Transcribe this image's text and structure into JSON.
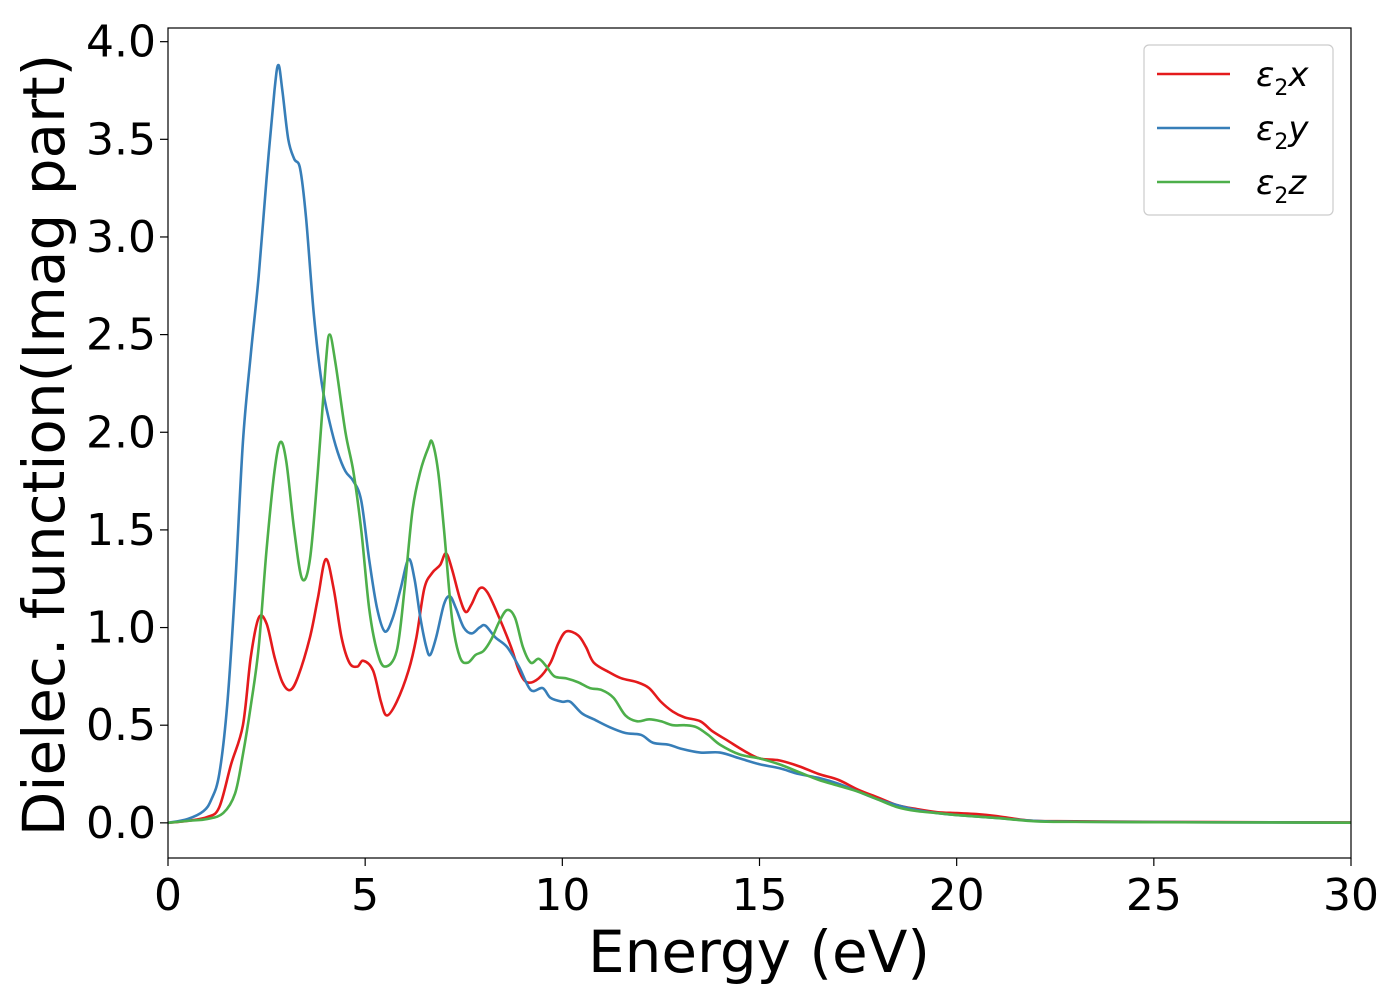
{
  "chart_data": {
    "type": "line",
    "xlabel": "Energy (eV)",
    "ylabel": "Dielec. function(Imag part)",
    "xlim": [
      0,
      30
    ],
    "ylim": [
      -0.18,
      4.07
    ],
    "xticks": [
      0,
      5,
      10,
      15,
      20,
      25,
      30
    ],
    "xtick_labels": [
      "0",
      "5",
      "10",
      "15",
      "20",
      "25",
      "30"
    ],
    "yticks": [
      0.0,
      0.5,
      1.0,
      1.5,
      2.0,
      2.5,
      3.0,
      3.5,
      4.0
    ],
    "ytick_labels": [
      "0.0",
      "0.5",
      "1.0",
      "1.5",
      "2.0",
      "2.5",
      "3.0",
      "3.5",
      "4.0"
    ],
    "grid": false,
    "legend_position": "top-right",
    "series": [
      {
        "name": "ε2x",
        "legend": {
          "symbol": "ε",
          "sub": "2",
          "comp": "x"
        },
        "color": "#e41a1c",
        "points": [
          [
            0,
            0
          ],
          [
            0.5,
            0.01
          ],
          [
            1.0,
            0.03
          ],
          [
            1.3,
            0.08
          ],
          [
            1.6,
            0.3
          ],
          [
            1.9,
            0.5
          ],
          [
            2.1,
            0.85
          ],
          [
            2.3,
            1.05
          ],
          [
            2.5,
            1.02
          ],
          [
            2.7,
            0.85
          ],
          [
            2.9,
            0.72
          ],
          [
            3.1,
            0.68
          ],
          [
            3.3,
            0.75
          ],
          [
            3.6,
            0.95
          ],
          [
            3.8,
            1.15
          ],
          [
            4.0,
            1.35
          ],
          [
            4.2,
            1.2
          ],
          [
            4.4,
            0.95
          ],
          [
            4.6,
            0.82
          ],
          [
            4.8,
            0.8
          ],
          [
            4.95,
            0.83
          ],
          [
            5.2,
            0.78
          ],
          [
            5.4,
            0.62
          ],
          [
            5.55,
            0.55
          ],
          [
            5.8,
            0.62
          ],
          [
            6.1,
            0.78
          ],
          [
            6.3,
            0.95
          ],
          [
            6.5,
            1.2
          ],
          [
            6.7,
            1.28
          ],
          [
            6.9,
            1.32
          ],
          [
            7.05,
            1.38
          ],
          [
            7.2,
            1.3
          ],
          [
            7.4,
            1.15
          ],
          [
            7.55,
            1.08
          ],
          [
            7.7,
            1.12
          ],
          [
            7.9,
            1.2
          ],
          [
            8.1,
            1.18
          ],
          [
            8.4,
            1.05
          ],
          [
            8.7,
            0.9
          ],
          [
            8.9,
            0.78
          ],
          [
            9.1,
            0.72
          ],
          [
            9.4,
            0.74
          ],
          [
            9.7,
            0.82
          ],
          [
            9.9,
            0.92
          ],
          [
            10.1,
            0.98
          ],
          [
            10.4,
            0.96
          ],
          [
            10.6,
            0.9
          ],
          [
            10.8,
            0.82
          ],
          [
            11.2,
            0.77
          ],
          [
            11.5,
            0.74
          ],
          [
            11.9,
            0.72
          ],
          [
            12.2,
            0.69
          ],
          [
            12.5,
            0.62
          ],
          [
            12.8,
            0.57
          ],
          [
            13.1,
            0.54
          ],
          [
            13.5,
            0.52
          ],
          [
            13.8,
            0.47
          ],
          [
            14.2,
            0.42
          ],
          [
            14.6,
            0.37
          ],
          [
            15.0,
            0.33
          ],
          [
            15.5,
            0.32
          ],
          [
            16.0,
            0.29
          ],
          [
            16.5,
            0.25
          ],
          [
            17.0,
            0.22
          ],
          [
            17.5,
            0.17
          ],
          [
            18.0,
            0.13
          ],
          [
            18.5,
            0.09
          ],
          [
            19.0,
            0.07
          ],
          [
            19.5,
            0.055
          ],
          [
            20.0,
            0.05
          ],
          [
            20.5,
            0.045
          ],
          [
            21.0,
            0.035
          ],
          [
            21.5,
            0.02
          ],
          [
            22.0,
            0.01
          ],
          [
            23,
            0.008
          ],
          [
            25,
            0.005
          ],
          [
            28,
            0.003
          ],
          [
            30,
            0.002
          ]
        ]
      },
      {
        "name": "ε2y",
        "legend": {
          "symbol": "ε",
          "sub": "2",
          "comp": "y"
        },
        "color": "#377eb8",
        "points": [
          [
            0,
            0
          ],
          [
            0.5,
            0.02
          ],
          [
            0.9,
            0.06
          ],
          [
            1.1,
            0.12
          ],
          [
            1.3,
            0.25
          ],
          [
            1.5,
            0.6
          ],
          [
            1.7,
            1.2
          ],
          [
            1.9,
            1.95
          ],
          [
            2.1,
            2.4
          ],
          [
            2.3,
            2.8
          ],
          [
            2.5,
            3.3
          ],
          [
            2.7,
            3.75
          ],
          [
            2.8,
            3.88
          ],
          [
            2.9,
            3.75
          ],
          [
            3.05,
            3.5
          ],
          [
            3.2,
            3.4
          ],
          [
            3.35,
            3.35
          ],
          [
            3.5,
            3.1
          ],
          [
            3.7,
            2.6
          ],
          [
            3.9,
            2.25
          ],
          [
            4.1,
            2.05
          ],
          [
            4.3,
            1.9
          ],
          [
            4.5,
            1.8
          ],
          [
            4.7,
            1.75
          ],
          [
            4.9,
            1.65
          ],
          [
            5.1,
            1.35
          ],
          [
            5.3,
            1.1
          ],
          [
            5.5,
            0.98
          ],
          [
            5.7,
            1.05
          ],
          [
            5.9,
            1.2
          ],
          [
            6.1,
            1.35
          ],
          [
            6.25,
            1.25
          ],
          [
            6.4,
            1.05
          ],
          [
            6.55,
            0.9
          ],
          [
            6.65,
            0.86
          ],
          [
            6.8,
            0.95
          ],
          [
            7.0,
            1.12
          ],
          [
            7.15,
            1.16
          ],
          [
            7.3,
            1.1
          ],
          [
            7.5,
            1.0
          ],
          [
            7.7,
            0.97
          ],
          [
            7.9,
            1.0
          ],
          [
            8.05,
            1.01
          ],
          [
            8.3,
            0.95
          ],
          [
            8.6,
            0.9
          ],
          [
            8.9,
            0.8
          ],
          [
            9.2,
            0.68
          ],
          [
            9.5,
            0.69
          ],
          [
            9.7,
            0.64
          ],
          [
            10.0,
            0.62
          ],
          [
            10.2,
            0.62
          ],
          [
            10.5,
            0.56
          ],
          [
            10.8,
            0.53
          ],
          [
            11.2,
            0.49
          ],
          [
            11.6,
            0.46
          ],
          [
            12.0,
            0.45
          ],
          [
            12.3,
            0.41
          ],
          [
            12.7,
            0.4
          ],
          [
            13.0,
            0.38
          ],
          [
            13.5,
            0.36
          ],
          [
            14.0,
            0.36
          ],
          [
            14.5,
            0.33
          ],
          [
            15.0,
            0.3
          ],
          [
            15.5,
            0.28
          ],
          [
            16.0,
            0.25
          ],
          [
            16.5,
            0.23
          ],
          [
            17.0,
            0.2
          ],
          [
            17.5,
            0.16
          ],
          [
            18.0,
            0.12
          ],
          [
            18.5,
            0.09
          ],
          [
            19.0,
            0.065
          ],
          [
            19.5,
            0.05
          ],
          [
            20.0,
            0.04
          ],
          [
            21.0,
            0.025
          ],
          [
            22.0,
            0.01
          ],
          [
            23,
            0.006
          ],
          [
            25,
            0.004
          ],
          [
            28,
            0.002
          ],
          [
            30,
            0.001
          ]
        ]
      },
      {
        "name": "ε2z",
        "legend": {
          "symbol": "ε",
          "sub": "2",
          "comp": "z"
        },
        "color": "#4daf4a",
        "points": [
          [
            0,
            0
          ],
          [
            0.5,
            0.01
          ],
          [
            1.0,
            0.02
          ],
          [
            1.4,
            0.05
          ],
          [
            1.7,
            0.15
          ],
          [
            1.9,
            0.35
          ],
          [
            2.1,
            0.6
          ],
          [
            2.3,
            0.9
          ],
          [
            2.5,
            1.4
          ],
          [
            2.7,
            1.8
          ],
          [
            2.85,
            1.95
          ],
          [
            3.0,
            1.85
          ],
          [
            3.2,
            1.5
          ],
          [
            3.4,
            1.25
          ],
          [
            3.6,
            1.35
          ],
          [
            3.8,
            1.8
          ],
          [
            4.0,
            2.35
          ],
          [
            4.1,
            2.5
          ],
          [
            4.25,
            2.35
          ],
          [
            4.5,
            2.0
          ],
          [
            4.7,
            1.8
          ],
          [
            4.9,
            1.5
          ],
          [
            5.1,
            1.1
          ],
          [
            5.3,
            0.88
          ],
          [
            5.5,
            0.8
          ],
          [
            5.8,
            0.88
          ],
          [
            6.0,
            1.2
          ],
          [
            6.2,
            1.6
          ],
          [
            6.4,
            1.8
          ],
          [
            6.6,
            1.92
          ],
          [
            6.7,
            1.95
          ],
          [
            6.85,
            1.8
          ],
          [
            7.0,
            1.5
          ],
          [
            7.2,
            1.05
          ],
          [
            7.4,
            0.85
          ],
          [
            7.6,
            0.82
          ],
          [
            7.8,
            0.86
          ],
          [
            8.0,
            0.88
          ],
          [
            8.2,
            0.94
          ],
          [
            8.4,
            1.03
          ],
          [
            8.6,
            1.09
          ],
          [
            8.8,
            1.05
          ],
          [
            9.0,
            0.9
          ],
          [
            9.2,
            0.82
          ],
          [
            9.4,
            0.84
          ],
          [
            9.6,
            0.8
          ],
          [
            9.8,
            0.75
          ],
          [
            10.1,
            0.74
          ],
          [
            10.4,
            0.72
          ],
          [
            10.7,
            0.69
          ],
          [
            11.0,
            0.68
          ],
          [
            11.3,
            0.64
          ],
          [
            11.6,
            0.55
          ],
          [
            11.9,
            0.52
          ],
          [
            12.2,
            0.53
          ],
          [
            12.5,
            0.52
          ],
          [
            12.8,
            0.5
          ],
          [
            13.1,
            0.5
          ],
          [
            13.4,
            0.49
          ],
          [
            13.7,
            0.45
          ],
          [
            14.0,
            0.4
          ],
          [
            14.5,
            0.35
          ],
          [
            15.0,
            0.33
          ],
          [
            15.5,
            0.3
          ],
          [
            16.0,
            0.26
          ],
          [
            16.5,
            0.22
          ],
          [
            17.0,
            0.19
          ],
          [
            17.5,
            0.16
          ],
          [
            18.0,
            0.12
          ],
          [
            18.5,
            0.08
          ],
          [
            19.0,
            0.06
          ],
          [
            19.5,
            0.05
          ],
          [
            20.0,
            0.04
          ],
          [
            21.0,
            0.025
          ],
          [
            22.0,
            0.008
          ],
          [
            23,
            0.005
          ],
          [
            25,
            0.003
          ],
          [
            28,
            0.002
          ],
          [
            30,
            0.001
          ]
        ]
      }
    ]
  }
}
